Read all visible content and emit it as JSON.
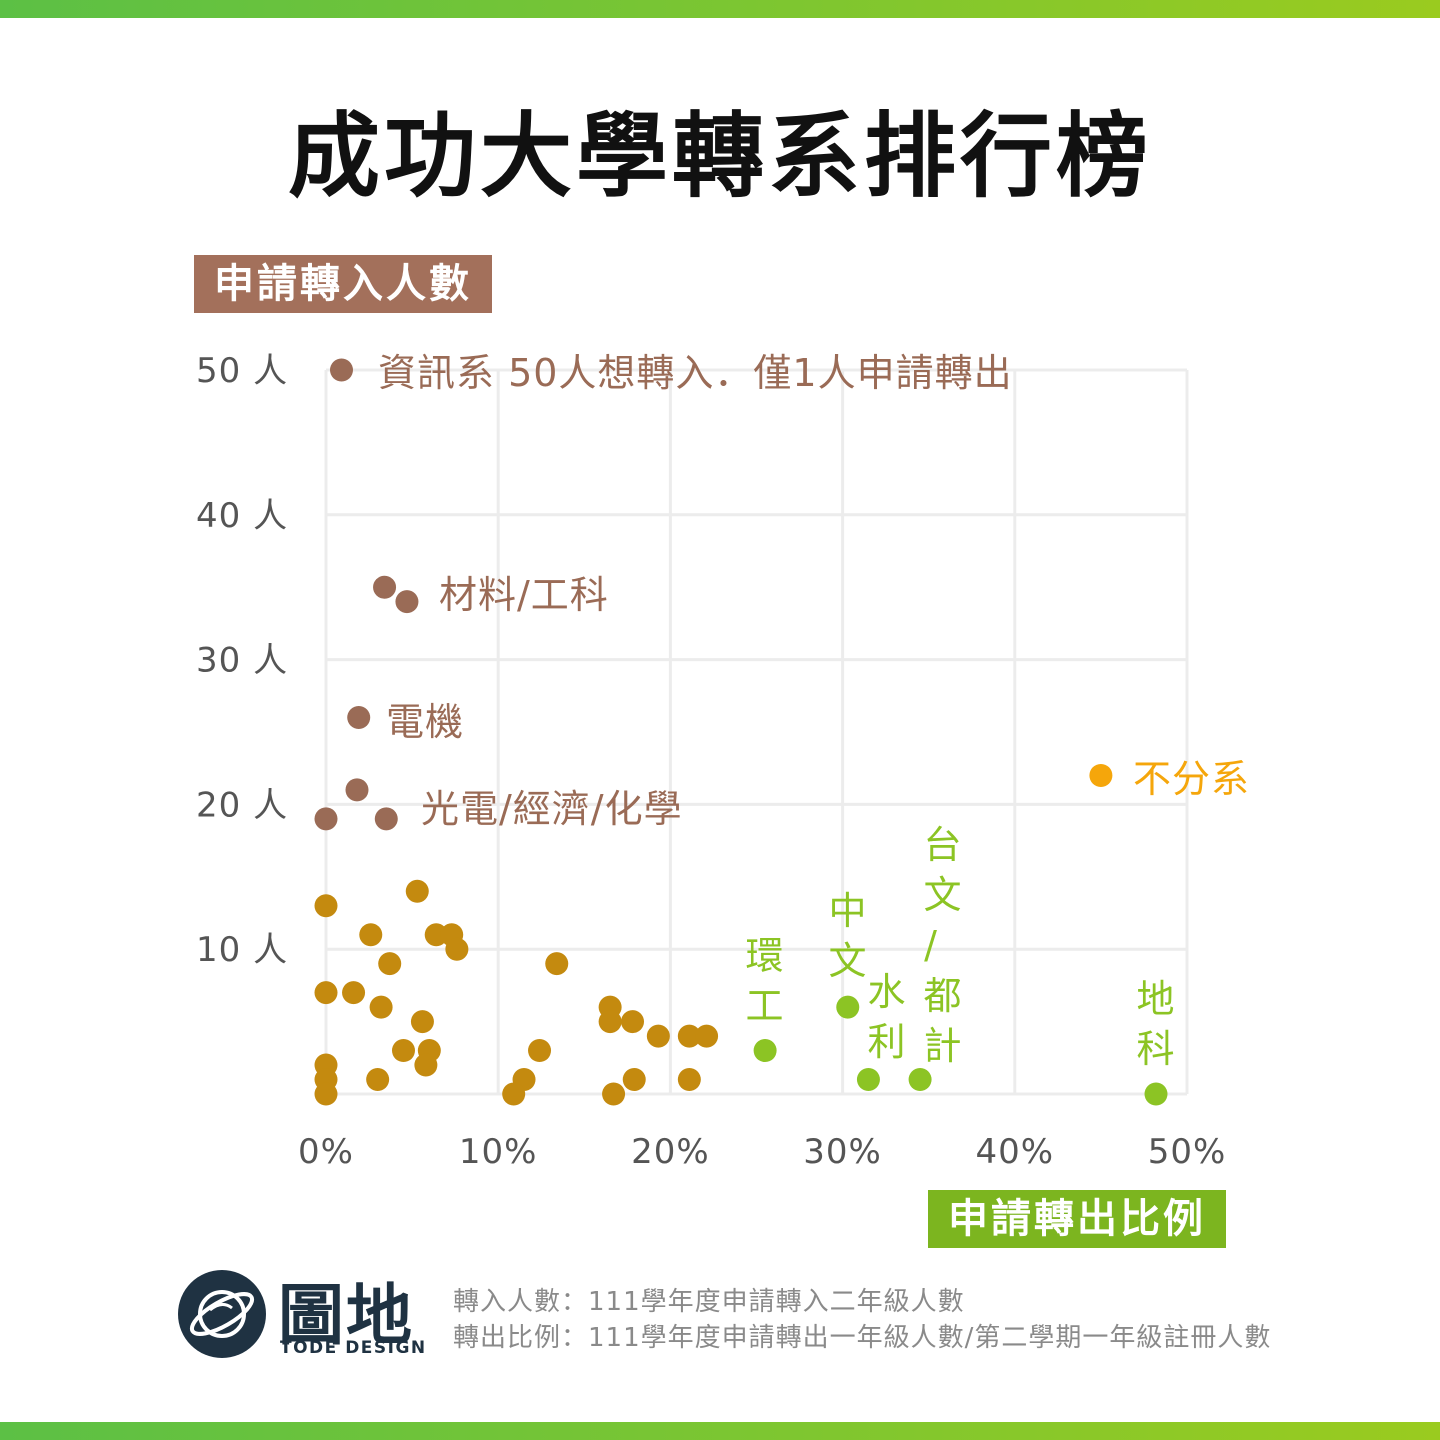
{
  "title": "成功大學轉系排行榜",
  "colors": {
    "accent_bar": "#7cbf2a",
    "brown": "#9a6b56",
    "gold": "#c48a0f",
    "green": "#8cc424",
    "orange": "#f5a60b",
    "brand": "#1f3242"
  },
  "chart_data": {
    "type": "scatter",
    "xlabel": "申請轉出比例",
    "ylabel": "申請轉入人數",
    "xlim": [
      0,
      50
    ],
    "ylim": [
      0,
      50
    ],
    "x_ticks": [
      0,
      10,
      20,
      30,
      40,
      50
    ],
    "x_tick_labels": [
      "0%",
      "10%",
      "20%",
      "30%",
      "40%",
      "50%"
    ],
    "y_ticks": [
      10,
      20,
      30,
      40,
      50
    ],
    "y_tick_labels": [
      "10 人",
      "20 人",
      "30 人",
      "40 人",
      "50 人"
    ],
    "grid": true,
    "series": [
      {
        "group": "brown",
        "points": [
          [
            0.9,
            50
          ],
          [
            3.4,
            35
          ],
          [
            4.7,
            34
          ],
          [
            1.9,
            26
          ],
          [
            1.8,
            21
          ],
          [
            0,
            19
          ],
          [
            3.5,
            19
          ]
        ]
      },
      {
        "group": "gold",
        "points": [
          [
            0,
            13
          ],
          [
            5.3,
            14
          ],
          [
            2.6,
            11
          ],
          [
            6.4,
            11
          ],
          [
            7.3,
            11
          ],
          [
            7.6,
            10
          ],
          [
            3.7,
            9
          ],
          [
            13.4,
            9
          ],
          [
            0,
            7
          ],
          [
            1.6,
            7
          ],
          [
            3.2,
            6
          ],
          [
            16.5,
            6
          ],
          [
            5.6,
            5
          ],
          [
            16.5,
            5
          ],
          [
            17.8,
            5
          ],
          [
            19.3,
            4
          ],
          [
            21.1,
            4
          ],
          [
            22.1,
            4
          ],
          [
            4.5,
            3
          ],
          [
            6.0,
            3
          ],
          [
            12.4,
            3
          ],
          [
            5.8,
            2
          ],
          [
            0,
            2
          ],
          [
            0,
            1
          ],
          [
            3.0,
            1
          ],
          [
            11.5,
            1
          ],
          [
            17.9,
            1
          ],
          [
            21.1,
            1
          ],
          [
            0,
            0
          ],
          [
            10.9,
            0
          ],
          [
            16.7,
            0
          ]
        ]
      },
      {
        "group": "green",
        "points": [
          [
            25.5,
            3
          ],
          [
            30.3,
            6
          ],
          [
            31.5,
            1
          ],
          [
            34.5,
            1
          ],
          [
            48.2,
            0
          ]
        ]
      },
      {
        "group": "orange",
        "points": [
          [
            45.0,
            22
          ]
        ]
      }
    ],
    "annotations": {
      "csie": "資訊系 50人想轉入．僅1人申請轉出",
      "materials": "材料/工科",
      "ee": "電機",
      "photonics": "光電/經濟/化學",
      "undeclared": "不分系",
      "env": "環工",
      "chinese": "中文",
      "hydraulic": "水利",
      "taiwanese": "台文/都計",
      "earth": "地科"
    }
  },
  "logo": {
    "name": "圖地",
    "sub": "TODE DESIGN"
  },
  "notes": [
    "轉入人數：111學年度申請轉入二年級人數",
    "轉出比例：111學年度申請轉出一年級人數/第二學期一年級註冊人數"
  ]
}
